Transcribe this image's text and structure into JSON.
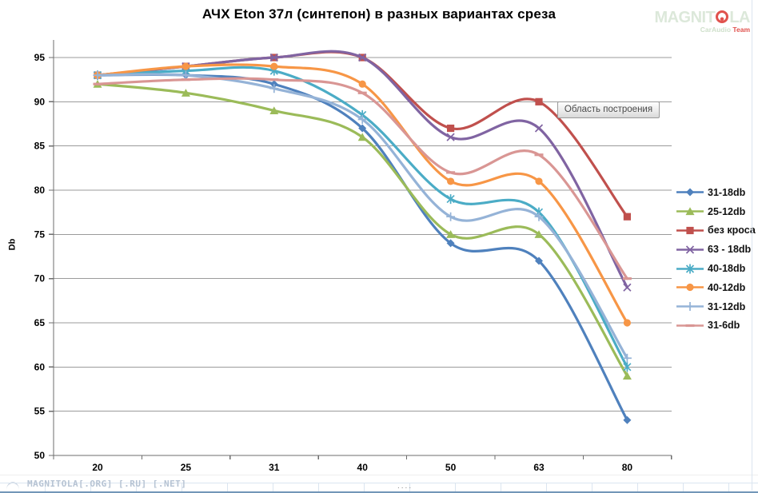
{
  "title": "АЧХ  Eton 37л (синтепон) в разных вариантах среза",
  "plot_tooltip": "Область построения",
  "watermark_top": {
    "brand_prefix": "MAGNIT",
    "brand_suffix": "LA",
    "subtitle_left": "CarAudio",
    "subtitle_right": "Team"
  },
  "bottom_bar": {
    "watermark": "MAGNITOLA[.ORG] [.RU] [.NET]",
    "dots": "...."
  },
  "chart_data": {
    "type": "line",
    "smooth": true,
    "grid": true,
    "legend_position": "right",
    "title": "АЧХ  Eton 37л (синтепон) в разных вариантах среза",
    "xlabel": "",
    "ylabel": "Db",
    "x_categories": [
      "20",
      "25",
      "31",
      "40",
      "50",
      "63",
      "80"
    ],
    "y_ticks": [
      95,
      90,
      85,
      80,
      75,
      70,
      65,
      60,
      55,
      50
    ],
    "ylim": [
      50,
      97
    ],
    "gridline_color": "#9b9b9b",
    "axis_color": "#6e6e6e",
    "series": [
      {
        "name": "31-18db",
        "color": "#4F81BD",
        "marker": "diamond",
        "values": [
          93,
          93,
          92,
          87,
          74,
          72,
          54
        ]
      },
      {
        "name": "25-12db",
        "color": "#9BBB59",
        "marker": "triangle",
        "values": [
          92,
          91,
          89,
          86,
          75,
          75,
          59
        ]
      },
      {
        "name": "без кроса",
        "color": "#C0504D",
        "marker": "square",
        "values": [
          93,
          94,
          95,
          95,
          87,
          90,
          77
        ]
      },
      {
        "name": "63 - 18db",
        "color": "#8064A2",
        "marker": "x",
        "values": [
          93,
          94,
          95,
          95,
          86,
          87,
          69
        ]
      },
      {
        "name": "40-18db",
        "color": "#4BACC6",
        "marker": "asterisk",
        "values": [
          93,
          93.5,
          93.5,
          88.5,
          79,
          77.5,
          60
        ]
      },
      {
        "name": "40-12db",
        "color": "#F79646",
        "marker": "circle",
        "values": [
          93,
          94,
          94,
          92,
          81,
          81,
          65
        ]
      },
      {
        "name": "31-12db",
        "color": "#95B3D7",
        "marker": "plus",
        "values": [
          93,
          93,
          91.5,
          88,
          77,
          77,
          61
        ]
      },
      {
        "name": "31-6db",
        "color": "#D99694",
        "marker": "dash",
        "values": [
          92,
          92.5,
          92.5,
          91,
          82,
          84,
          70
        ]
      }
    ]
  }
}
